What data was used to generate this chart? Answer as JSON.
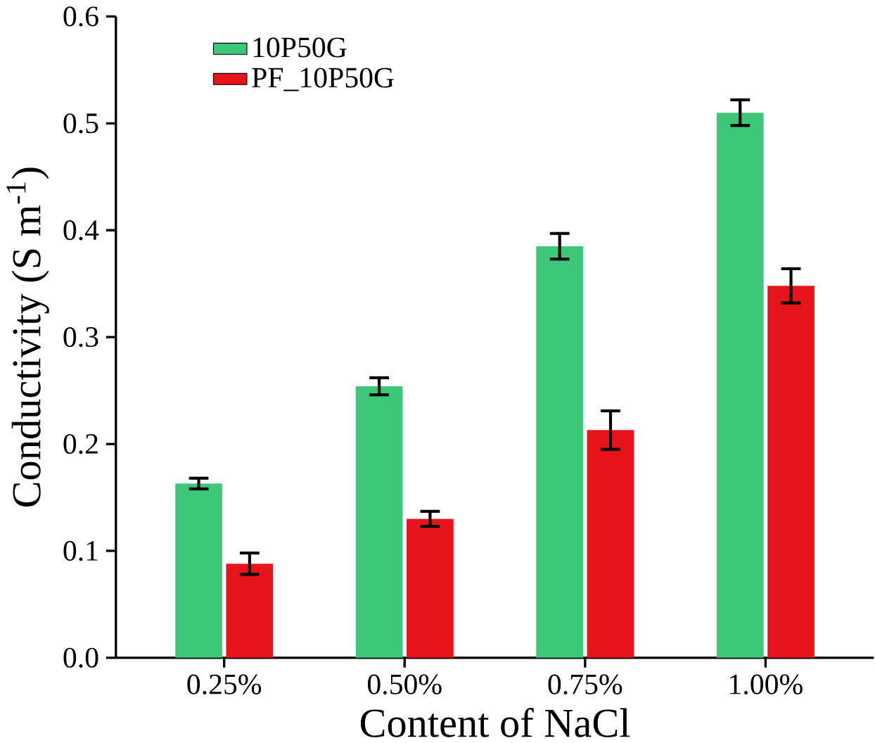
{
  "chart_data": {
    "type": "bar",
    "xlabel": "Content of NaCl",
    "ylabel": "Conductivity (S m$^{-1}$)",
    "categories": [
      "0.25%",
      "0.50%",
      "0.75%",
      "1.00%"
    ],
    "series": [
      {
        "name": "10P50G",
        "color": "#3cc878",
        "values": [
          0.163,
          0.254,
          0.385,
          0.51
        ],
        "errors": [
          0.005,
          0.008,
          0.012,
          0.012
        ]
      },
      {
        "name": "PF_10P50G",
        "color": "#e8141c",
        "values": [
          0.088,
          0.13,
          0.213,
          0.348
        ],
        "errors": [
          0.01,
          0.007,
          0.018,
          0.016
        ]
      }
    ],
    "ylim": [
      0,
      0.6
    ],
    "yticks": [
      {
        "value": 0,
        "label": "0.0"
      },
      0.1,
      0.2,
      0.3,
      0.4,
      0.5,
      0.6
    ],
    "legend": "top left",
    "grid": false
  }
}
